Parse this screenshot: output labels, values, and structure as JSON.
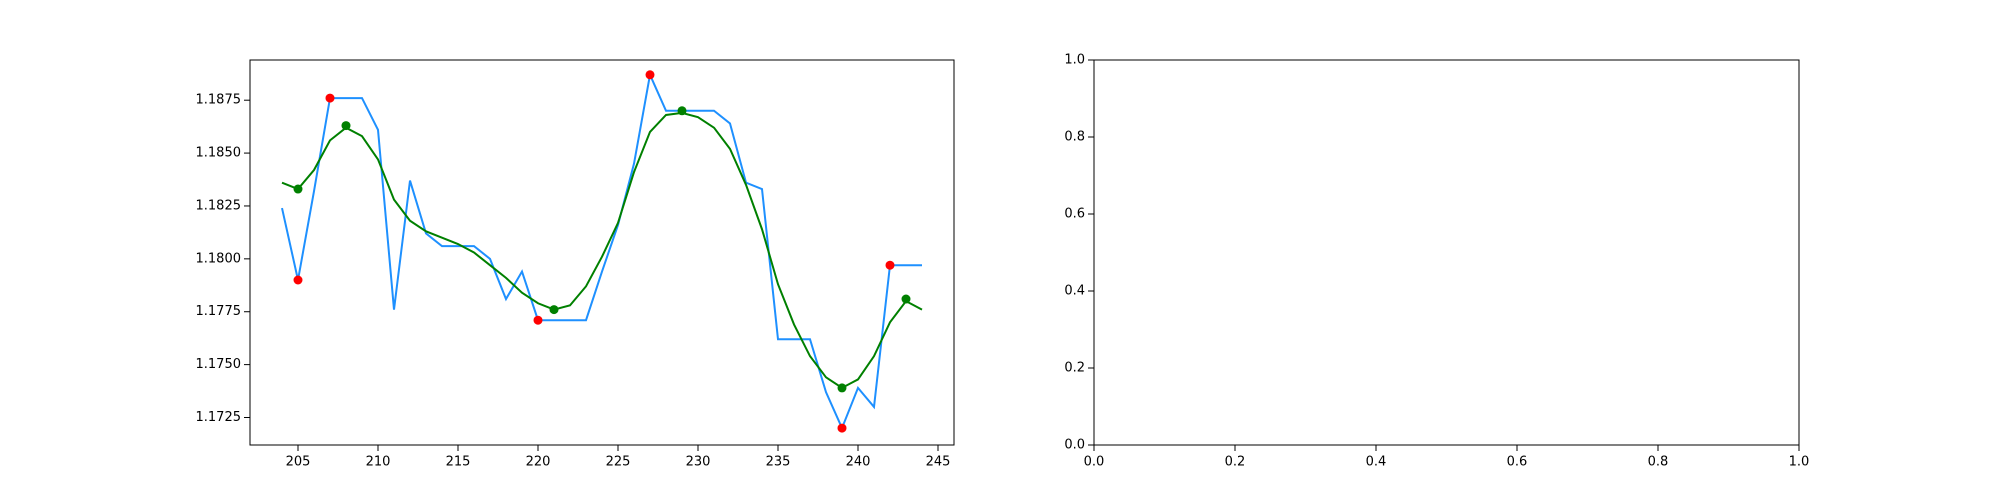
{
  "chart_data": [
    {
      "type": "line",
      "x": [
        204,
        205,
        206,
        207,
        208,
        209,
        210,
        211,
        212,
        213,
        214,
        215,
        216,
        217,
        218,
        219,
        220,
        221,
        222,
        223,
        224,
        225,
        226,
        227,
        228,
        229,
        230,
        231,
        232,
        233,
        234,
        235,
        236,
        237,
        238,
        239,
        240,
        241,
        242,
        243,
        244
      ],
      "series": [
        {
          "color": "#1e90ff",
          "values": [
            1.1824,
            1.179,
            1.1832,
            1.1876,
            1.1876,
            1.1876,
            1.1861,
            1.1776,
            1.1837,
            1.1812,
            1.1806,
            1.1806,
            1.1806,
            1.18,
            1.1781,
            1.1794,
            1.1771,
            1.1771,
            1.1771,
            1.1771,
            1.1794,
            1.1816,
            1.1845,
            1.1887,
            1.187,
            1.187,
            1.187,
            1.187,
            1.1864,
            1.1836,
            1.1833,
            1.1762,
            1.1762,
            1.1762,
            1.1737,
            1.172,
            1.1739,
            1.173,
            1.1797,
            1.1797,
            1.1797
          ]
        },
        {
          "color": "#008000",
          "values": [
            1.1836,
            1.1833,
            1.1842,
            1.1856,
            1.1862,
            1.1858,
            1.1847,
            1.1828,
            1.1818,
            1.1813,
            1.181,
            1.1807,
            1.1803,
            1.1797,
            1.1791,
            1.1784,
            1.1779,
            1.1776,
            1.1778,
            1.1787,
            1.1801,
            1.1817,
            1.1841,
            1.186,
            1.1868,
            1.1869,
            1.1867,
            1.1862,
            1.1852,
            1.1835,
            1.1814,
            1.1788,
            1.1769,
            1.1754,
            1.1744,
            1.1739,
            1.1743,
            1.1754,
            1.177,
            1.178,
            1.1776
          ]
        },
        {
          "color": "#ff0000",
          "mode": "markers",
          "x": [
            205,
            207,
            220,
            227,
            239,
            242
          ],
          "values": [
            1.179,
            1.1876,
            1.1771,
            1.1887,
            1.172,
            1.1797
          ]
        },
        {
          "color": "#008000",
          "mode": "markers",
          "x": [
            205,
            208,
            221,
            229,
            239,
            243
          ],
          "values": [
            1.1833,
            1.1863,
            1.1776,
            1.187,
            1.1739,
            1.1781
          ]
        }
      ],
      "xlim": [
        202,
        246
      ],
      "xticks": [
        205,
        210,
        215,
        220,
        225,
        230,
        235,
        240,
        245
      ],
      "ylim": [
        1.1712,
        1.1894
      ],
      "yticks": [
        1.1725,
        {
          "value": 1.175,
          "label": "1.1750"
        },
        1.1775,
        {
          "value": 1.18,
          "label": "1.1800"
        },
        1.1825,
        {
          "value": 1.185,
          "label": "1.1850"
        },
        1.1875
      ]
    },
    {
      "type": "line",
      "xlim": [
        0,
        1
      ],
      "xticks": [
        {
          "value": 0,
          "label": "0.0"
        },
        0.2,
        0.4,
        0.6,
        0.8,
        {
          "value": 1,
          "label": "1.0"
        }
      ],
      "ylim": [
        0,
        1
      ],
      "yticks": [
        {
          "value": 0,
          "label": "0.0"
        },
        0.2,
        0.4,
        0.6,
        0.8,
        {
          "value": 1,
          "label": "1.0"
        }
      ]
    }
  ]
}
